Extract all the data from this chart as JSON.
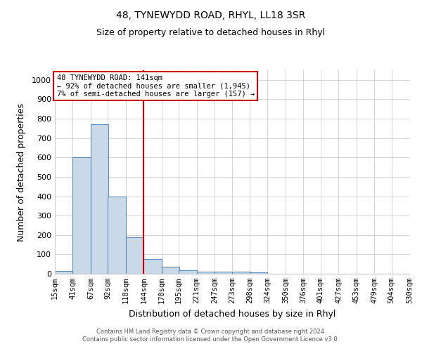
{
  "title1": "48, TYNEWYDD ROAD, RHYL, LL18 3SR",
  "title2": "Size of property relative to detached houses in Rhyl",
  "xlabel": "Distribution of detached houses by size in Rhyl",
  "ylabel": "Number of detached properties",
  "footnote1": "Contains HM Land Registry data © Crown copyright and database right 2024.",
  "footnote2": "Contains public sector information licensed under the Open Government Licence v3.0.",
  "annotation_line1": "48 TYNEWYDD ROAD: 141sqm",
  "annotation_line2": "← 92% of detached houses are smaller (1,945)",
  "annotation_line3": "7% of semi-detached houses are larger (157) →",
  "bar_color": "#c9d9e8",
  "bar_edge_color": "#5b8db8",
  "redline_color": "#cc0000",
  "annotation_box_color": "#ffffff",
  "annotation_box_edge_color": "#cc0000",
  "categories": [
    "15sqm",
    "41sqm",
    "67sqm",
    "92sqm",
    "118sqm",
    "144sqm",
    "170sqm",
    "195sqm",
    "221sqm",
    "247sqm",
    "273sqm",
    "298sqm",
    "324sqm",
    "350sqm",
    "376sqm",
    "401sqm",
    "427sqm",
    "453sqm",
    "479sqm",
    "504sqm",
    "530sqm"
  ],
  "bin_edges": [
    15,
    41,
    67,
    92,
    118,
    144,
    170,
    195,
    221,
    247,
    273,
    298,
    324,
    350,
    376,
    401,
    427,
    453,
    479,
    504,
    530
  ],
  "values": [
    15,
    600,
    770,
    400,
    190,
    75,
    38,
    18,
    12,
    12,
    10,
    7,
    0,
    0,
    0,
    0,
    0,
    0,
    0,
    0
  ],
  "ylim": [
    0,
    1050
  ],
  "yticks": [
    0,
    100,
    200,
    300,
    400,
    500,
    600,
    700,
    800,
    900,
    1000
  ],
  "grid_color": "#cccccc",
  "redline_x": 144,
  "fig_width": 6.0,
  "fig_height": 5.0,
  "dpi": 100
}
